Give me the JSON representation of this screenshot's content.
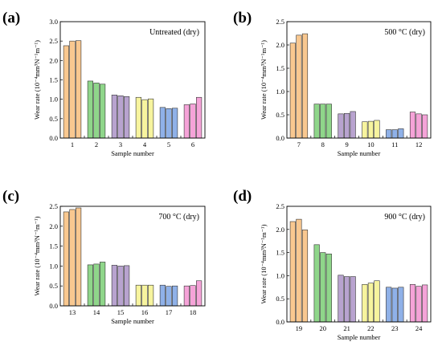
{
  "chart_data": [
    {
      "type": "bar",
      "panel": "(a)",
      "annotation": "Untreated (dry)",
      "xlabel": "Sample number",
      "ylabel": "Wear rate (10⁻⁴mm³N⁻¹m⁻¹)",
      "ylim": [
        0,
        3.0
      ],
      "yticks": [
        "0.0",
        "0.5",
        "1.0",
        "1.5",
        "2.0",
        "2.5",
        "3.0"
      ],
      "categories": [
        "1",
        "2",
        "3",
        "4",
        "5",
        "6"
      ],
      "colors": [
        "#f9c890",
        "#8fd68a",
        "#b8a3cf",
        "#f7f49e",
        "#8fb1e8",
        "#f5a3d8"
      ],
      "values": [
        [
          2.38,
          2.5,
          2.51
        ],
        [
          1.47,
          1.42,
          1.39
        ],
        [
          1.11,
          1.09,
          1.07
        ],
        [
          1.05,
          0.99,
          1.01
        ],
        [
          0.79,
          0.76,
          0.77
        ],
        [
          0.86,
          0.88,
          1.05
        ]
      ]
    },
    {
      "type": "bar",
      "panel": "(b)",
      "annotation": "500 °C (dry)",
      "xlabel": "Sample number",
      "ylabel": "Wear rate (10⁻⁴mm³N⁻¹m⁻¹)",
      "ylim": [
        0,
        2.5
      ],
      "yticks": [
        "0.0",
        "0.5",
        "1.0",
        "1.5",
        "2.0",
        "2.5"
      ],
      "categories": [
        "7",
        "8",
        "9",
        "10",
        "11",
        "12"
      ],
      "colors": [
        "#f9c890",
        "#8fd68a",
        "#b8a3cf",
        "#f7f49e",
        "#8fb1e8",
        "#f5a3d8"
      ],
      "values": [
        [
          2.04,
          2.21,
          2.24
        ],
        [
          0.73,
          0.73,
          0.73
        ],
        [
          0.52,
          0.53,
          0.57
        ],
        [
          0.35,
          0.36,
          0.38
        ],
        [
          0.18,
          0.18,
          0.2
        ],
        [
          0.56,
          0.52,
          0.5
        ]
      ]
    },
    {
      "type": "bar",
      "panel": "(c)",
      "annotation": "700 °C (dry)",
      "xlabel": "Sample number",
      "ylabel": "Wear rate (10⁻⁴mm³N⁻¹m⁻¹)",
      "ylim": [
        0,
        2.5
      ],
      "yticks": [
        "0.0",
        "0.5",
        "1.0",
        "1.5",
        "2.0",
        "2.5"
      ],
      "categories": [
        "13",
        "14",
        "15",
        "16",
        "17",
        "18"
      ],
      "colors": [
        "#f9c890",
        "#8fd68a",
        "#b8a3cf",
        "#f7f49e",
        "#8fb1e8",
        "#f5a3d8"
      ],
      "values": [
        [
          2.36,
          2.42,
          2.46
        ],
        [
          1.03,
          1.05,
          1.1
        ],
        [
          1.02,
          1.0,
          1.01
        ],
        [
          0.52,
          0.52,
          0.52
        ],
        [
          0.52,
          0.49,
          0.5
        ],
        [
          0.5,
          0.51,
          0.63
        ]
      ]
    },
    {
      "type": "bar",
      "panel": "(d)",
      "annotation": "900 °C (dry)",
      "xlabel": "Sample number",
      "ylabel": "Wear rate (10⁻⁴mm³N⁻¹m⁻¹)",
      "ylim": [
        0,
        2.5
      ],
      "yticks": [
        "0.0",
        "0.5",
        "1.0",
        "1.5",
        "2.0",
        "2.5"
      ],
      "categories": [
        "19",
        "20",
        "21",
        "22",
        "23",
        "24"
      ],
      "colors": [
        "#f9c890",
        "#8fd68a",
        "#b8a3cf",
        "#f7f49e",
        "#8fb1e8",
        "#f5a3d8"
      ],
      "values": [
        [
          2.17,
          2.22,
          1.99
        ],
        [
          1.67,
          1.5,
          1.47
        ],
        [
          1.01,
          0.98,
          0.98
        ],
        [
          0.81,
          0.84,
          0.89
        ],
        [
          0.75,
          0.73,
          0.75
        ],
        [
          0.81,
          0.77,
          0.8
        ]
      ]
    }
  ]
}
